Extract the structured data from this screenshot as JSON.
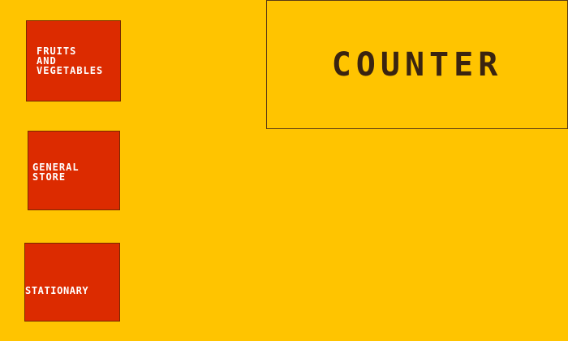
{
  "sections": [
    {
      "id": "fruits",
      "label": "FRUITS\nAND\nVEGETABLES"
    },
    {
      "id": "general",
      "label": "GENERAL\nSTORE"
    },
    {
      "id": "stationary",
      "label": "STATIONARY"
    }
  ],
  "counter": {
    "label": "COUNTER"
  },
  "colors": {
    "background": "#ffc400",
    "section_fill": "#dc2b00",
    "section_text": "#ffffff",
    "counter_text": "#3a2410"
  }
}
